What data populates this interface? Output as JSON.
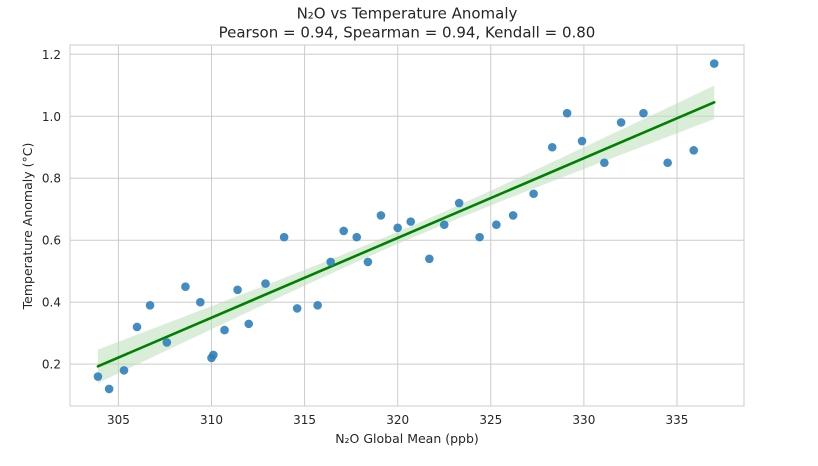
{
  "chart_data": {
    "type": "scatter",
    "title": "N₂O vs Temperature Anomaly",
    "subtitle": "Pearson = 0.94, Spearman = 0.94, Kendall = 0.80",
    "xlabel": "N₂O Global Mean (ppb)",
    "ylabel": "Temperature Anomaly (°C)",
    "xlim": [
      302.4,
      338.6
    ],
    "ylim": [
      0.065,
      1.23
    ],
    "xticks": [
      305,
      310,
      315,
      320,
      325,
      330,
      335
    ],
    "yticks": [
      0.2,
      0.4,
      0.6,
      0.8,
      1.0,
      1.2
    ],
    "ytick_labels": [
      "0.2",
      "0.4",
      "0.6",
      "0.8",
      "1.0",
      "1.2"
    ],
    "grid": true,
    "colors": {
      "points": "#2f7fba",
      "fit_line": "#008000",
      "confidence_band": "#b9deb9"
    },
    "series": [
      {
        "x": [
          303.9,
          304.5,
          305.3,
          306.0,
          306.7,
          307.6,
          308.6,
          309.4,
          310.0,
          310.1,
          310.7,
          311.4,
          312.0,
          312.9,
          313.9,
          314.6,
          315.7,
          316.4,
          317.1,
          317.8,
          318.4,
          319.1,
          320.0,
          320.7,
          321.7,
          322.5,
          323.3,
          324.4,
          325.3,
          326.2,
          327.3,
          328.3,
          329.1,
          329.9,
          331.1,
          332.0,
          333.2,
          334.5,
          335.9,
          337.0
        ],
        "y": [
          0.16,
          0.12,
          0.18,
          0.32,
          0.39,
          0.27,
          0.45,
          0.4,
          0.22,
          0.23,
          0.31,
          0.44,
          0.33,
          0.46,
          0.61,
          0.38,
          0.39,
          0.53,
          0.63,
          0.61,
          0.53,
          0.68,
          0.64,
          0.66,
          0.54,
          0.65,
          0.72,
          0.61,
          0.65,
          0.68,
          0.75,
          0.9,
          1.01,
          0.92,
          0.85,
          0.98,
          1.01,
          0.85,
          0.89,
          1.17
        ]
      }
    ],
    "regression": {
      "x": [
        303.9,
        337.0
      ],
      "y": [
        0.193,
        1.045
      ],
      "ci_lower": [
        0.139,
        0.981
      ],
      "ci_upper": [
        0.247,
        1.109
      ]
    }
  }
}
